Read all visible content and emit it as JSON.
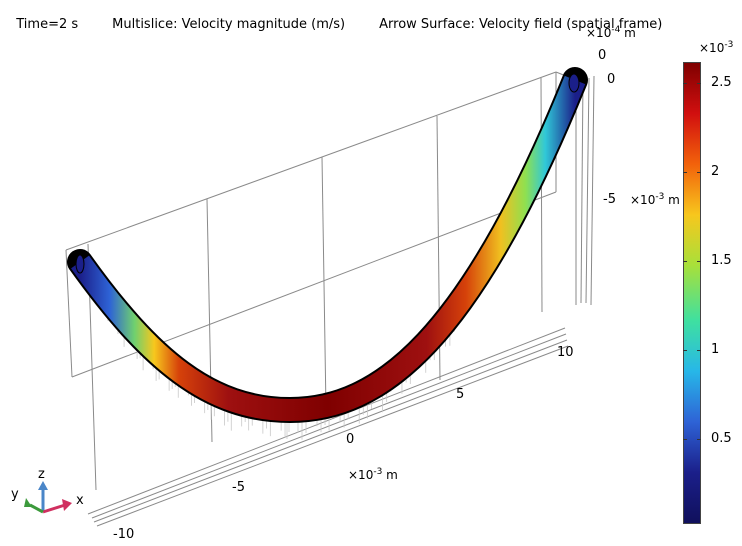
{
  "header": {
    "time": "Time=2 s",
    "multislice": "Multislice: Velocity magnitude (m/s)",
    "arrow_surface": "Arrow Surface: Velocity field (spatial frame)"
  },
  "axes": {
    "x_ticks": [
      "-10",
      "-5",
      "0",
      "5",
      "10"
    ],
    "x_unit_base": "×10",
    "x_unit_exp": "-3",
    "x_unit_suffix": " m",
    "z_top_tick": "0",
    "z_unit_base": "×10",
    "z_unit_exp": "-4",
    "z_unit_suffix": " m",
    "z_zero_tick": "0",
    "y_tick_minus5": "-5",
    "y_unit_base": "×10",
    "y_unit_exp": "-3",
    "y_unit_suffix": " m"
  },
  "triad": {
    "x": "x",
    "y": "y",
    "z": "z"
  },
  "colorbar": {
    "multiplier_base": "×10",
    "multiplier_exp": "-3",
    "ticks": [
      "2.5",
      "2",
      "1.5",
      "1",
      "0.5"
    ],
    "colors": [
      "#7f0000",
      "#d10f0f",
      "#f2620b",
      "#f7c71d",
      "#a8e03a",
      "#3fe0a0",
      "#27b7e8",
      "#2e63d6",
      "#1b1f8a",
      "#10105c"
    ]
  }
}
